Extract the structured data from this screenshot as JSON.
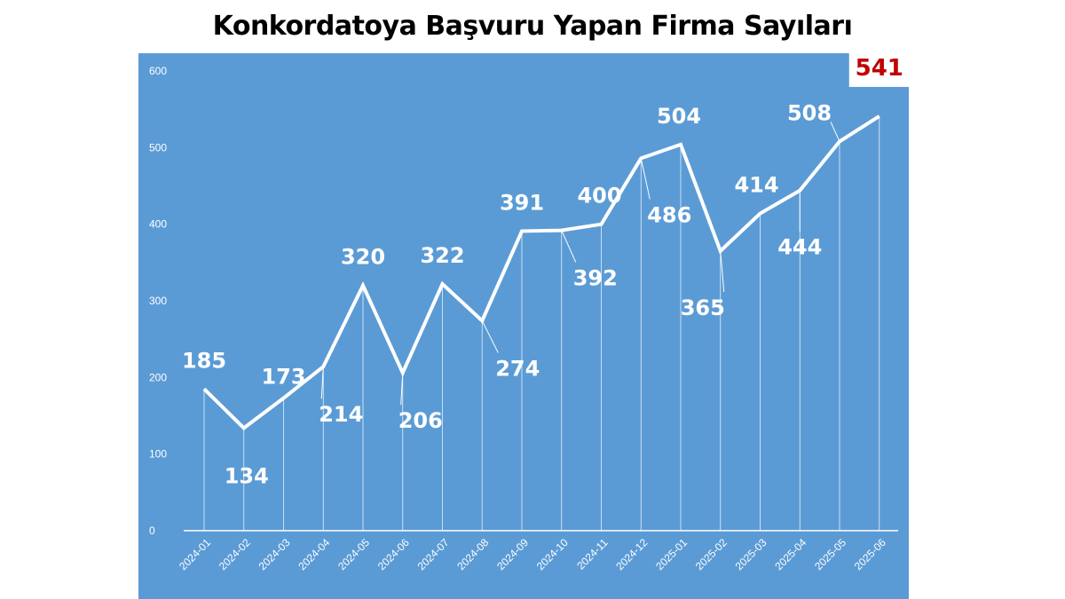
{
  "chart_data": {
    "type": "line",
    "title": "Konkordatoya Başvuru Yapan Firma Sayıları",
    "xlabel": "",
    "ylabel": "",
    "ylim": [
      0,
      600
    ],
    "yticks": [
      "0",
      "100",
      "200",
      "300",
      "400",
      "500",
      "600"
    ],
    "grid": false,
    "drop_lines": true,
    "categories": [
      "2024-01",
      "2024-02",
      "2024-03",
      "2024-04",
      "2024-05",
      "2024-06",
      "2024-07",
      "2024-08",
      "2024-09",
      "2024-10",
      "2024-11",
      "2024-12",
      "2025-01",
      "2025-02",
      "2025-03",
      "2025-04",
      "2025-05",
      "2025-06"
    ],
    "values": [
      185,
      134,
      173,
      214,
      320,
      206,
      322,
      274,
      391,
      392,
      400,
      486,
      504,
      365,
      414,
      444,
      508,
      541
    ],
    "highlight": {
      "category": "2025-06",
      "label": "541",
      "color": "#c00000"
    },
    "colors": {
      "plot_background": "#5b9bd5",
      "line": "#ffffff",
      "text": "#ffffff"
    }
  }
}
